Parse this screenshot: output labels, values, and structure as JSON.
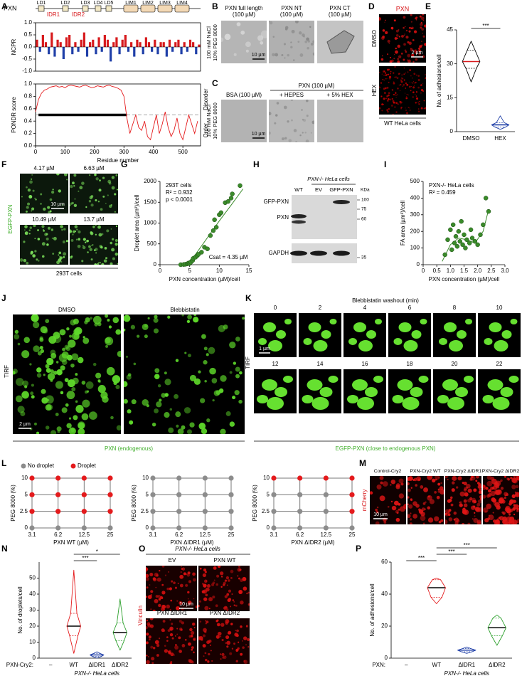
{
  "figure": {
    "panel_letters": [
      "A",
      "B",
      "C",
      "D",
      "E",
      "F",
      "G",
      "H",
      "I",
      "J",
      "K",
      "L",
      "M",
      "N",
      "O",
      "P"
    ],
    "A": {
      "protein": "PXN",
      "domains": [
        "LD1",
        "LD2",
        "LD3",
        "LD4",
        "LD5",
        "LIM1",
        "LIM2",
        "LIM3",
        "LIM4"
      ],
      "idrs": [
        "IDR1",
        "IDR2"
      ]
    },
    "B": {
      "titles": [
        [
          "PXN full length",
          "(100 µM)"
        ],
        [
          "PXN NT",
          "(100 µM)"
        ],
        [
          "PXN CT",
          "(100 µM)"
        ]
      ],
      "conditions": [
        "100 mM NaCl",
        "10% PEG 8000"
      ],
      "scale": "10 µm"
    },
    "C": {
      "group": "PXN (100 µM)",
      "titles": [
        "BSA (100 µM)",
        "+ HEPES",
        "+ 5% HEX"
      ],
      "conditions": [
        "100 mM NaCl",
        "10% PEG 8000"
      ],
      "scale": "10 µm"
    },
    "D": {
      "stain": "PXN",
      "rows": [
        "DMSO",
        "HEX"
      ],
      "scale": "2 µm",
      "cells": "WT HeLa cells"
    },
    "F": {
      "concentrations": [
        "4.17 µM",
        "6.63 µM",
        "10.49 µM",
        "13.7 µM"
      ],
      "stain": "EGFP-PXN",
      "scale": "10 µm",
      "cells": "293T cells"
    },
    "H": {
      "cells": "PXN-/- HeLa cells",
      "lanes": [
        "WT",
        "EV",
        "GFP-PXN"
      ],
      "bands": [
        "GFP-PXN",
        "PXN",
        "GAPDH"
      ],
      "unit": "KDa",
      "markers": [
        100,
        75,
        60,
        35
      ]
    },
    "J": {
      "conditions": [
        "DMSO",
        "Blebbistatin"
      ],
      "method": "TIRF",
      "scale": "2 µm",
      "stain": "PXN (endogenous)"
    },
    "K": {
      "title": "Blebbistatin washout (min)",
      "times": [
        0,
        2,
        4,
        6,
        8,
        10,
        12,
        14,
        16,
        18,
        20,
        22
      ],
      "method": "TIRF",
      "scale": "1 µm",
      "stain": "EGFP-PXN (close to endogenous PXN)"
    },
    "M": {
      "constructs": [
        "Control-Cry2",
        "PXN-Cry2 WT",
        "PXN-Cry2 ΔIDR1",
        "PXN-Cry2 ΔIDR2"
      ],
      "stain": "mCherry",
      "scale": "10 µm"
    },
    "O": {
      "cells": "PXN-/- HeLa cells",
      "conditions": [
        "EV",
        "PXN WT",
        "PXN ΔIDR1",
        "PXN ΔIDR2"
      ],
      "stain": "Vinculin",
      "scale": "10 µm"
    }
  },
  "chart_data": [
    {
      "type": "bar",
      "ylabel": "NCPR",
      "xlim": [
        0,
        560
      ],
      "ylim": [
        -1,
        1
      ],
      "yticks": [
        {
          "value": -1,
          "label": "-1.0"
        },
        {
          "value": -0.5,
          "label": "-0.5"
        },
        {
          "value": 0,
          "label": "0.0"
        },
        {
          "value": 0.5,
          "label": "0.5"
        },
        {
          "value": 1,
          "label": "1.0"
        }
      ],
      "x": [
        5,
        15,
        25,
        35,
        45,
        55,
        65,
        75,
        85,
        95,
        105,
        115,
        125,
        135,
        145,
        155,
        165,
        175,
        185,
        195,
        205,
        215,
        225,
        235,
        245,
        255,
        265,
        275,
        285,
        295,
        305,
        315,
        325,
        335,
        345,
        355,
        365,
        375,
        385,
        395,
        405,
        415,
        425,
        435,
        445,
        455,
        465,
        475,
        485,
        495,
        505,
        515,
        525,
        535,
        545,
        555
      ],
      "values": [
        0.3,
        -0.2,
        0.5,
        0.2,
        -0.3,
        0.6,
        -0.4,
        0.3,
        0.2,
        -0.5,
        0.4,
        0.5,
        -0.3,
        0.2,
        -0.2,
        0.3,
        0.6,
        -0.4,
        0.2,
        0.3,
        -0.3,
        0.4,
        -0.2,
        0.5,
        0.3,
        -0.6,
        0.2,
        0.4,
        -0.3,
        0.3,
        0.5,
        -0.2,
        0.2,
        -0.4,
        0.3,
        0.2,
        -0.3,
        0.4,
        0.2,
        -0.2,
        0.3,
        -0.3,
        0.2,
        0.2,
        -0.4,
        0.3,
        -0.2,
        0.2,
        0.3,
        -0.3,
        0.2,
        -0.2,
        0.3,
        0.2,
        -0.3,
        0.1
      ],
      "positive_color": "#d7191c",
      "negative_color": "#1f3fa8"
    },
    {
      "type": "line",
      "xlabel": "Residue number",
      "ylabel": "PONDR score",
      "xlim": [
        0,
        560
      ],
      "ylim": [
        0,
        1
      ],
      "xticks": [
        0,
        100,
        200,
        300,
        400,
        500
      ],
      "yticks": [
        {
          "value": 0,
          "label": "0.0"
        },
        0.2,
        0.4,
        0.6,
        0.8,
        {
          "value": 1,
          "label": "1.0"
        }
      ],
      "threshold": 0.5,
      "idr_span": [
        10,
        310
      ],
      "region_labels": [
        "Disorder",
        "Order"
      ],
      "series": [
        {
          "color": "#e41a1c",
          "x": [
            0,
            10,
            20,
            30,
            40,
            50,
            60,
            70,
            80,
            90,
            100,
            110,
            120,
            130,
            140,
            150,
            160,
            170,
            180,
            190,
            200,
            210,
            220,
            230,
            240,
            250,
            260,
            270,
            280,
            290,
            300,
            310,
            320,
            330,
            340,
            350,
            360,
            370,
            380,
            390,
            400,
            410,
            420,
            430,
            440,
            450,
            460,
            470,
            480,
            490,
            500,
            510,
            520,
            530,
            540,
            550
          ],
          "values": [
            0.55,
            0.75,
            0.85,
            0.9,
            0.92,
            0.95,
            0.96,
            0.97,
            0.95,
            0.96,
            0.94,
            0.97,
            0.98,
            0.97,
            0.96,
            0.95,
            0.97,
            0.98,
            0.96,
            0.94,
            0.95,
            0.97,
            0.96,
            0.95,
            0.97,
            0.98,
            0.96,
            0.95,
            0.93,
            0.9,
            0.8,
            0.45,
            0.2,
            0.35,
            0.5,
            0.3,
            0.25,
            0.4,
            0.15,
            0.1,
            0.3,
            0.5,
            0.2,
            0.35,
            0.55,
            0.3,
            0.15,
            0.25,
            0.45,
            0.2,
            0.1,
            0.3,
            0.5,
            0.35,
            0.2,
            0.4
          ]
        }
      ]
    },
    {
      "type": "violin",
      "ylabel": "No. of adhesions/cell",
      "categories": [
        "DMSO",
        "HEX"
      ],
      "ylim": [
        0,
        45
      ],
      "yticks": [
        0,
        15,
        30,
        45
      ],
      "min": [
        22,
        1
      ],
      "q1": [
        28,
        2
      ],
      "median": [
        31,
        3
      ],
      "q3": [
        36,
        4
      ],
      "max": [
        40,
        7
      ],
      "colors": [
        "#000000",
        "#1f3fa8"
      ],
      "median_colors": [
        "#d7191c",
        "#1f3fa8"
      ],
      "significance": [
        {
          "groups": [
            0,
            1
          ],
          "label": "***"
        }
      ]
    },
    {
      "type": "scatter",
      "xlabel": "PXN concentration (µM)/cell",
      "ylabel": "Droplet area (µm²)/cell",
      "xlim": [
        0,
        15
      ],
      "ylim": [
        0,
        2000
      ],
      "xticks": [
        0,
        5,
        10,
        15
      ],
      "yticks": [
        0,
        500,
        1000,
        1500,
        2000
      ],
      "color": "#3a8a2a",
      "annotations": [
        "293T cells",
        "R² = 0.932",
        "p < 0.0001"
      ],
      "footnote": "Csat = 4.35 µM",
      "x": [
        3.5,
        4,
        4.3,
        4.6,
        4.8,
        5,
        5.2,
        5.5,
        5.6,
        6,
        6.3,
        6.5,
        7,
        7.5,
        8,
        8.5,
        9,
        9.2,
        9.5,
        10,
        10.3,
        11,
        11.5,
        12,
        12.2,
        13.5
      ],
      "values": [
        0,
        5,
        10,
        20,
        40,
        30,
        60,
        100,
        150,
        180,
        220,
        250,
        300,
        420,
        380,
        700,
        820,
        1080,
        900,
        1200,
        1250,
        1490,
        1520,
        1600,
        1700,
        1900
      ],
      "fit": {
        "x": [
          3,
          4.35,
          6,
          8,
          10,
          12,
          14
        ],
        "values": [
          0,
          0,
          250,
          650,
          1050,
          1430,
          1820
        ]
      }
    },
    {
      "type": "scatter",
      "xlabel": "PXN concentration (µM)/cell",
      "ylabel": "FA area (µm²)/cell",
      "xlim": [
        0,
        3
      ],
      "ylim": [
        0,
        500
      ],
      "xticks": [
        0,
        0.5,
        {
          "value": 1,
          "label": "1.0"
        },
        1.5,
        {
          "value": 2,
          "label": "2.0"
        },
        2.5,
        {
          "value": 3,
          "label": "3.0"
        }
      ],
      "yticks": [
        0,
        100,
        200,
        300,
        400,
        500
      ],
      "color": "#3a8a2a",
      "annotations": [
        "PXN-/- HeLa cells",
        "R² = 0.459"
      ],
      "x": [
        0.8,
        0.9,
        1,
        1.05,
        1.1,
        1.15,
        1.2,
        1.25,
        1.3,
        1.35,
        1.4,
        1.45,
        1.5,
        1.55,
        1.6,
        1.7,
        1.75,
        1.8,
        1.9,
        2,
        2.1,
        2.2,
        2.3,
        2.4
      ],
      "values": [
        60,
        150,
        210,
        90,
        240,
        130,
        170,
        110,
        200,
        140,
        260,
        120,
        180,
        100,
        150,
        130,
        210,
        160,
        140,
        120,
        180,
        240,
        400,
        320
      ],
      "fit": {
        "x": [
          0.7,
          1,
          1.3,
          1.6,
          1.9,
          2.2,
          2.4
        ],
        "values": [
          20,
          120,
          160,
          150,
          130,
          200,
          330
        ]
      }
    },
    {
      "type": "dot_grid",
      "xlabel": "PXN WT (µM)",
      "ylabel": "PEG 8000 (%)",
      "categories": [
        "3.1",
        "6.2",
        "12.5",
        "25"
      ],
      "rows": [
        "0",
        "2.5",
        "5",
        "10"
      ],
      "legend": [
        "No droplet",
        "Droplet"
      ],
      "state_colors": [
        "#8c8c8c",
        "#e41a1c"
      ],
      "values": [
        [
          0,
          0,
          0,
          0
        ],
        [
          1,
          1,
          1,
          1
        ],
        [
          1,
          1,
          1,
          1
        ],
        [
          1,
          1,
          1,
          1
        ]
      ]
    },
    {
      "type": "dot_grid",
      "xlabel": "PXN ΔIDR1 (µM)",
      "ylabel": "PEG 8000 (%)",
      "categories": [
        "3.1",
        "6.2",
        "12.5",
        "25"
      ],
      "rows": [
        "0",
        "2.5",
        "5",
        "10"
      ],
      "state_colors": [
        "#8c8c8c",
        "#e41a1c"
      ],
      "values": [
        [
          0,
          0,
          0,
          0
        ],
        [
          0,
          0,
          0,
          0
        ],
        [
          0,
          0,
          0,
          0
        ],
        [
          0,
          0,
          0,
          0
        ]
      ]
    },
    {
      "type": "dot_grid",
      "xlabel": "PXN ΔIDR2 (µM)",
      "ylabel": "PEG 8000 (%)",
      "categories": [
        "3.1",
        "6.2",
        "12.5",
        "25"
      ],
      "rows": [
        "0",
        "2.5",
        "5",
        "10"
      ],
      "state_colors": [
        "#8c8c8c",
        "#e41a1c"
      ],
      "values": [
        [
          0,
          0,
          0,
          0
        ],
        [
          0,
          0,
          0,
          1
        ],
        [
          0,
          0,
          0,
          1
        ],
        [
          1,
          1,
          1,
          1
        ]
      ]
    },
    {
      "type": "violin",
      "ylabel": "No. of droplets/cell",
      "row_label": "PXN-Cry2:",
      "footer": "PXN-/- HeLa cells",
      "categories": [
        "–",
        "WT",
        "ΔIDR1",
        "ΔIDR2"
      ],
      "ylim": [
        0,
        60
      ],
      "yticks": [
        0,
        10,
        20,
        30,
        40,
        50
      ],
      "min": [
        null,
        3,
        0,
        5
      ],
      "q1": [
        null,
        14,
        1,
        11
      ],
      "median": [
        null,
        20,
        2,
        16
      ],
      "q3": [
        null,
        28,
        3,
        22
      ],
      "max": [
        null,
        55,
        4,
        37
      ],
      "colors": [
        "#000000",
        "#e41a1c",
        "#1f3fa8",
        "#2ca02c"
      ],
      "median_colors": [
        "#000000",
        "#000000",
        "#1f3fa8",
        "#000000"
      ],
      "significance": [
        {
          "groups": [
            1,
            2
          ],
          "label": "***"
        },
        {
          "groups": [
            1,
            3
          ],
          "label": "*"
        }
      ]
    },
    {
      "type": "violin",
      "ylabel": "No. of adhesions/cell",
      "row_label": "PXN:",
      "footer": "PXN-/- HeLa cells",
      "categories": [
        "–",
        "WT",
        "ΔIDR1",
        "ΔIDR2"
      ],
      "ylim": [
        0,
        60
      ],
      "yticks": [
        0,
        20,
        40,
        60
      ],
      "min": [
        null,
        34,
        3,
        8
      ],
      "q1": [
        null,
        38,
        4,
        14
      ],
      "median": [
        null,
        44,
        5,
        19
      ],
      "q3": [
        null,
        49,
        6,
        25
      ],
      "max": [
        null,
        50,
        7,
        27
      ],
      "colors": [
        "#000000",
        "#e41a1c",
        "#1f3fa8",
        "#2ca02c"
      ],
      "median_colors": [
        "#000000",
        "#000000",
        "#1f3fa8",
        "#000000"
      ],
      "significance": [
        {
          "groups": [
            0,
            1
          ],
          "label": "***"
        },
        {
          "groups": [
            1,
            2
          ],
          "label": "***"
        },
        {
          "groups": [
            1,
            3
          ],
          "label": "***"
        }
      ]
    }
  ]
}
